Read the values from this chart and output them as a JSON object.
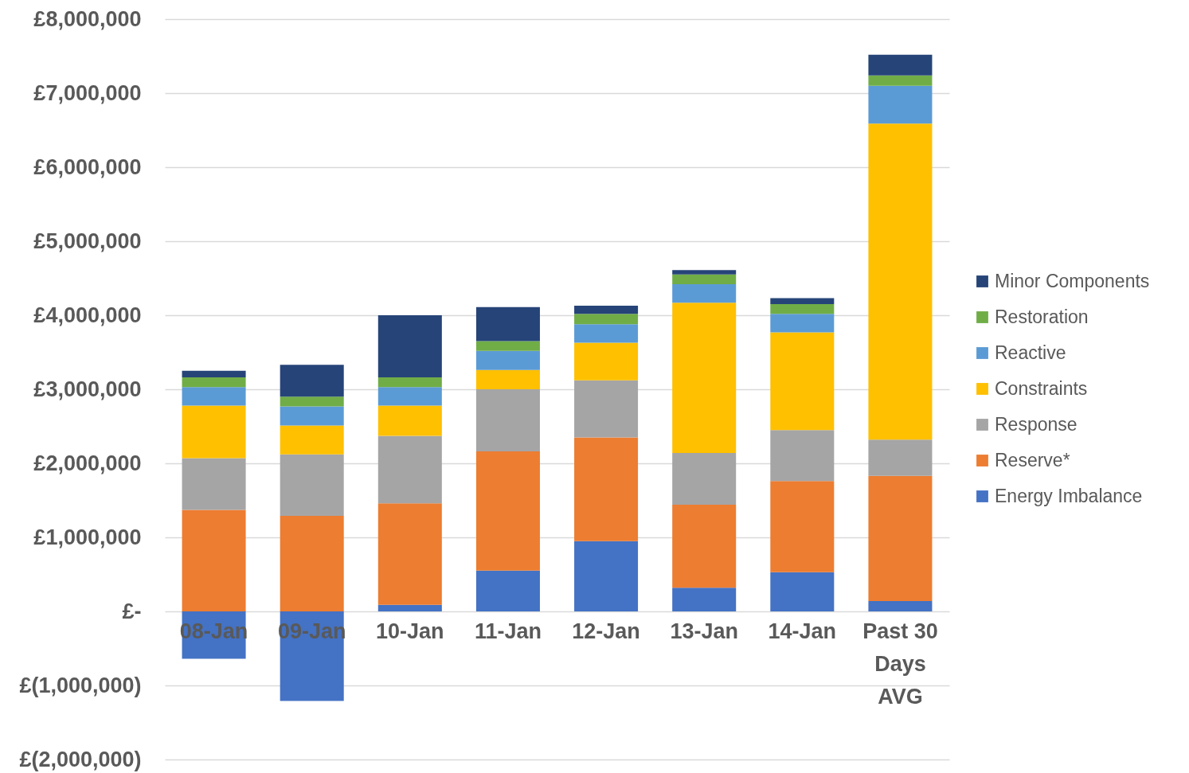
{
  "chart_data": {
    "type": "bar",
    "stacked": true,
    "categories": [
      "08-Jan",
      "09-Jan",
      "10-Jan",
      "11-Jan",
      "12-Jan",
      "13-Jan",
      "14-Jan",
      "Past 30 Days AVG"
    ],
    "series": [
      {
        "name": "Energy Imbalance",
        "color": "#4472c4",
        "values": [
          -640000,
          -1210000,
          90000,
          550000,
          950000,
          320000,
          530000,
          140000
        ]
      },
      {
        "name": "Reserve*",
        "color": "#ed7d31",
        "values": [
          1370000,
          1290000,
          1370000,
          1610000,
          1400000,
          1120000,
          1230000,
          1690000
        ]
      },
      {
        "name": "Response",
        "color": "#a5a5a5",
        "values": [
          700000,
          830000,
          910000,
          840000,
          770000,
          700000,
          690000,
          490000
        ]
      },
      {
        "name": "Constraints",
        "color": "#ffc000",
        "values": [
          710000,
          390000,
          410000,
          260000,
          510000,
          2030000,
          1320000,
          4270000
        ]
      },
      {
        "name": "Reactive",
        "color": "#5b9bd5",
        "values": [
          250000,
          260000,
          250000,
          260000,
          250000,
          250000,
          250000,
          510000
        ]
      },
      {
        "name": "Restoration",
        "color": "#70ad47",
        "values": [
          130000,
          130000,
          130000,
          130000,
          140000,
          130000,
          130000,
          140000
        ]
      },
      {
        "name": "Minor Components",
        "color": "#264478",
        "values": [
          90000,
          430000,
          840000,
          460000,
          110000,
          60000,
          80000,
          280000
        ]
      }
    ],
    "ylim": [
      -2000000,
      8000000
    ],
    "yticks": [
      {
        "value": -2000000,
        "label": "£(2,000,000)"
      },
      {
        "value": -1000000,
        "label": "£(1,000,000)"
      },
      {
        "value": 0,
        "label": "£-"
      },
      {
        "value": 1000000,
        "label": "£1,000,000"
      },
      {
        "value": 2000000,
        "label": "£2,000,000"
      },
      {
        "value": 3000000,
        "label": "£3,000,000"
      },
      {
        "value": 4000000,
        "label": "£4,000,000"
      },
      {
        "value": 5000000,
        "label": "£5,000,000"
      },
      {
        "value": 6000000,
        "label": "£6,000,000"
      },
      {
        "value": 7000000,
        "label": "£7,000,000"
      },
      {
        "value": 8000000,
        "label": "£8,000,000"
      }
    ],
    "grid": "y",
    "legend": "right"
  }
}
